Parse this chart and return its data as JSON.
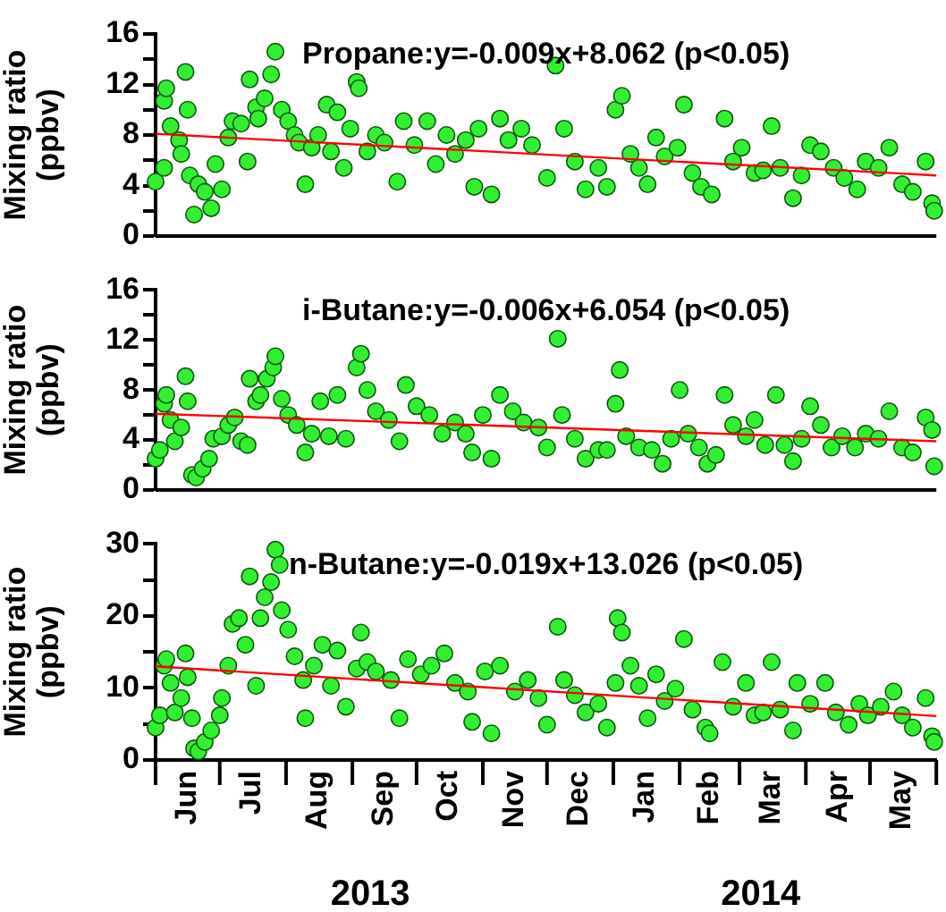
{
  "chart_data": [
    {
      "type": "scatter",
      "title": "Propane:y=-0.009x+8.062 (p<0.05)",
      "ylabel": "Mixing ratio\n(ppbv)",
      "xlim": [
        "2013-06-01",
        "2014-06-01"
      ],
      "ylim": [
        0,
        16
      ],
      "yticks": [
        0,
        {
          "value": 2,
          "label": null
        },
        4,
        {
          "value": 6,
          "label": null
        },
        8,
        {
          "value": 10,
          "label": null
        },
        12,
        {
          "value": 14,
          "label": null
        },
        16
      ],
      "tick_labels": "y",
      "marker": "circle",
      "series": [
        {
          "color": "#33ee33",
          "x": [
            "2013-06-01",
            "2013-06-05",
            "2013-06-05",
            "2013-06-06",
            "2013-06-08",
            "2013-06-12",
            "2013-06-13",
            "2013-06-15",
            "2013-06-16",
            "2013-06-17",
            "2013-06-19",
            "2013-06-21",
            "2013-06-24",
            "2013-06-27",
            "2013-06-29",
            "2013-07-02",
            "2013-07-05",
            "2013-07-07",
            "2013-07-11",
            "2013-07-14",
            "2013-07-15",
            "2013-07-18",
            "2013-07-19",
            "2013-07-22",
            "2013-07-25",
            "2013-07-27",
            "2013-07-30",
            "2013-08-02",
            "2013-08-05",
            "2013-08-07",
            "2013-08-10",
            "2013-08-13",
            "2013-08-16",
            "2013-08-20",
            "2013-08-22",
            "2013-08-25",
            "2013-08-28",
            "2013-08-31",
            "2013-09-03",
            "2013-09-04",
            "2013-09-08",
            "2013-09-12",
            "2013-09-16",
            "2013-09-22",
            "2013-09-25",
            "2013-09-30",
            "2013-10-06",
            "2013-10-10",
            "2013-10-15",
            "2013-10-19",
            "2013-10-24",
            "2013-10-28",
            "2013-10-30",
            "2013-11-05",
            "2013-11-09",
            "2013-11-13",
            "2013-11-19",
            "2013-11-24",
            "2013-12-01",
            "2013-12-05",
            "2013-12-09",
            "2013-12-14",
            "2013-12-19",
            "2013-12-25",
            "2013-12-29",
            "2014-01-02",
            "2014-01-05",
            "2014-01-09",
            "2014-01-13",
            "2014-01-17",
            "2014-01-21",
            "2014-01-25",
            "2014-01-31",
            "2014-02-03",
            "2014-02-07",
            "2014-02-11",
            "2014-02-16",
            "2014-02-22",
            "2014-02-26",
            "2014-03-02",
            "2014-03-08",
            "2014-03-12",
            "2014-03-16",
            "2014-03-20",
            "2014-03-26",
            "2014-03-30",
            "2014-04-03",
            "2014-04-08",
            "2014-04-14",
            "2014-04-19",
            "2014-04-25",
            "2014-04-29",
            "2014-05-05",
            "2014-05-10",
            "2014-05-16",
            "2014-05-21",
            "2014-05-27",
            "2014-05-30",
            "2014-05-31"
          ],
          "values": [
            4.3,
            5.4,
            10.7,
            11.7,
            8.7,
            7.6,
            6.5,
            13.0,
            10.0,
            4.8,
            1.7,
            4.1,
            3.5,
            2.2,
            5.7,
            3.7,
            7.8,
            9.1,
            8.9,
            5.9,
            12.4,
            10.2,
            9.3,
            10.9,
            12.8,
            14.6,
            10.0,
            9.1,
            8.0,
            7.4,
            4.1,
            7.0,
            8.0,
            10.4,
            6.7,
            9.8,
            5.4,
            8.5,
            12.2,
            11.7,
            6.7,
            8.0,
            7.4,
            4.3,
            9.1,
            7.2,
            9.1,
            5.7,
            8.0,
            6.5,
            7.6,
            3.9,
            8.5,
            3.3,
            9.3,
            7.6,
            8.5,
            7.2,
            4.6,
            13.5,
            8.5,
            5.9,
            3.7,
            5.4,
            3.9,
            10.0,
            11.1,
            6.5,
            5.4,
            4.1,
            7.8,
            6.3,
            7.0,
            10.4,
            5.0,
            3.9,
            3.3,
            9.3,
            5.9,
            7.0,
            5.0,
            5.2,
            8.7,
            5.4,
            3.0,
            4.8,
            7.2,
            6.7,
            5.4,
            4.6,
            3.7,
            5.9,
            5.4,
            7.0,
            4.1,
            3.5,
            5.9,
            2.6,
            2.0
          ]
        },
        {
          "type": "line",
          "marker": "none",
          "color": "#ff0000",
          "x": [
            "2013-06-01",
            "2014-06-01"
          ],
          "values": [
            8.1,
            4.8
          ]
        }
      ]
    },
    {
      "type": "scatter",
      "title": "i-Butane:y=-0.006x+6.054 (p<0.05)",
      "ylabel": "Mixing ratio\n(ppbv)",
      "xlim": [
        "2013-06-01",
        "2014-06-01"
      ],
      "ylim": [
        0,
        16
      ],
      "yticks": [
        0,
        {
          "value": 2,
          "label": null
        },
        4,
        {
          "value": 6,
          "label": null
        },
        8,
        {
          "value": 10,
          "label": null
        },
        12,
        {
          "value": 14,
          "label": null
        },
        16
      ],
      "tick_labels": "y",
      "marker": "circle",
      "series": [
        {
          "color": "#33ee33",
          "x": [
            "2013-06-01",
            "2013-06-03",
            "2013-06-05",
            "2013-06-06",
            "2013-06-08",
            "2013-06-10",
            "2013-06-13",
            "2013-06-15",
            "2013-06-16",
            "2013-06-18",
            "2013-06-20",
            "2013-06-23",
            "2013-06-26",
            "2013-06-28",
            "2013-07-02",
            "2013-07-05",
            "2013-07-08",
            "2013-07-11",
            "2013-07-14",
            "2013-07-15",
            "2013-07-18",
            "2013-07-20",
            "2013-07-23",
            "2013-07-26",
            "2013-07-27",
            "2013-07-30",
            "2013-08-02",
            "2013-08-06",
            "2013-08-10",
            "2013-08-13",
            "2013-08-17",
            "2013-08-21",
            "2013-08-25",
            "2013-08-29",
            "2013-09-03",
            "2013-09-05",
            "2013-09-08",
            "2013-09-12",
            "2013-09-18",
            "2013-09-23",
            "2013-09-26",
            "2013-10-01",
            "2013-10-07",
            "2013-10-13",
            "2013-10-19",
            "2013-10-24",
            "2013-10-27",
            "2013-11-01",
            "2013-11-05",
            "2013-11-09",
            "2013-11-15",
            "2013-11-20",
            "2013-11-27",
            "2013-12-01",
            "2013-12-06",
            "2013-12-08",
            "2013-12-14",
            "2013-12-19",
            "2013-12-25",
            "2013-12-29",
            "2014-01-02",
            "2014-01-04",
            "2014-01-07",
            "2014-01-13",
            "2014-01-19",
            "2014-01-24",
            "2014-01-28",
            "2014-02-01",
            "2014-02-05",
            "2014-02-10",
            "2014-02-14",
            "2014-02-18",
            "2014-02-22",
            "2014-02-26",
            "2014-03-04",
            "2014-03-08",
            "2014-03-13",
            "2014-03-18",
            "2014-03-22",
            "2014-03-26",
            "2014-03-30",
            "2014-04-03",
            "2014-04-08",
            "2014-04-13",
            "2014-04-18",
            "2014-04-24",
            "2014-04-29",
            "2014-05-05",
            "2014-05-10",
            "2014-05-16",
            "2014-05-21",
            "2014-05-27",
            "2014-05-30",
            "2014-05-31"
          ],
          "values": [
            2.5,
            3.2,
            6.9,
            7.6,
            5.6,
            3.9,
            5.0,
            9.1,
            7.1,
            1.2,
            1.0,
            1.7,
            2.5,
            4.1,
            4.3,
            5.2,
            5.8,
            3.9,
            3.6,
            8.9,
            7.1,
            7.6,
            8.9,
            9.8,
            10.7,
            7.3,
            6.0,
            5.2,
            3.0,
            4.5,
            7.1,
            4.3,
            7.6,
            4.1,
            9.8,
            10.9,
            8.0,
            6.3,
            5.6,
            3.9,
            8.4,
            6.7,
            6.0,
            4.5,
            5.4,
            4.5,
            3.0,
            6.0,
            2.5,
            7.6,
            6.3,
            5.4,
            5.0,
            3.4,
            12.1,
            6.0,
            4.1,
            2.5,
            3.2,
            3.2,
            6.9,
            9.6,
            4.3,
            3.4,
            3.2,
            2.1,
            4.1,
            8.0,
            4.5,
            3.4,
            2.1,
            2.8,
            7.6,
            5.2,
            4.3,
            5.6,
            3.6,
            7.6,
            3.6,
            2.3,
            4.1,
            6.7,
            5.2,
            3.4,
            4.3,
            3.4,
            4.5,
            4.1,
            6.3,
            3.4,
            3.0,
            5.8,
            4.8,
            1.9
          ]
        },
        {
          "type": "line",
          "marker": "none",
          "color": "#ff0000",
          "x": [
            "2013-06-01",
            "2014-06-01"
          ],
          "values": [
            6.1,
            3.9
          ]
        }
      ]
    },
    {
      "type": "scatter",
      "title": "n-Butane:y=-0.019x+13.026 (p<0.05)",
      "ylabel": "Mixing ratio\n(ppbv)",
      "annotations": [
        "2013",
        "2014"
      ],
      "xlim": [
        "2013-06-01",
        "2014-06-01"
      ],
      "xticks": [
        {
          "value": "2013-06-01",
          "label": null
        },
        {
          "value": "2013-06-16",
          "label": "Jun"
        },
        {
          "value": "2013-07-01",
          "label": null
        },
        {
          "value": "2013-07-16",
          "label": "Jul"
        },
        {
          "value": "2013-08-01",
          "label": null
        },
        {
          "value": "2013-08-16",
          "label": "Aug"
        },
        {
          "value": "2013-09-01",
          "label": null
        },
        {
          "value": "2013-09-16",
          "label": "Sep"
        },
        {
          "value": "2013-10-01",
          "label": null
        },
        {
          "value": "2013-10-16",
          "label": "Oct"
        },
        {
          "value": "2013-11-01",
          "label": null
        },
        {
          "value": "2013-11-16",
          "label": "Nov"
        },
        {
          "value": "2013-12-01",
          "label": null
        },
        {
          "value": "2013-12-16",
          "label": "Dec"
        },
        {
          "value": "2014-01-01",
          "label": null
        },
        {
          "value": "2014-01-16",
          "label": "Jan"
        },
        {
          "value": "2014-02-01",
          "label": null
        },
        {
          "value": "2014-02-15",
          "label": "Feb"
        },
        {
          "value": "2014-03-01",
          "label": null
        },
        {
          "value": "2014-03-16",
          "label": "Mar"
        },
        {
          "value": "2014-04-01",
          "label": null
        },
        {
          "value": "2014-04-16",
          "label": "Apr"
        },
        {
          "value": "2014-05-01",
          "label": null
        },
        {
          "value": "2014-05-16",
          "label": "May"
        },
        {
          "value": "2014-06-01",
          "label": null
        }
      ],
      "ylim": [
        0,
        30
      ],
      "yticks": [
        0,
        {
          "value": 5,
          "label": null
        },
        10,
        {
          "value": 15,
          "label": null
        },
        20,
        {
          "value": 25,
          "label": null
        },
        30
      ],
      "marker": "circle",
      "series": [
        {
          "color": "#33ee33",
          "x": [
            "2013-06-01",
            "2013-06-03",
            "2013-06-05",
            "2013-06-06",
            "2013-06-08",
            "2013-06-10",
            "2013-06-13",
            "2013-06-15",
            "2013-06-16",
            "2013-06-18",
            "2013-06-19",
            "2013-06-21",
            "2013-06-24",
            "2013-06-27",
            "2013-07-01",
            "2013-07-02",
            "2013-07-05",
            "2013-07-07",
            "2013-07-10",
            "2013-07-13",
            "2013-07-15",
            "2013-07-18",
            "2013-07-20",
            "2013-07-22",
            "2013-07-25",
            "2013-07-27",
            "2013-07-29",
            "2013-07-30",
            "2013-08-02",
            "2013-08-05",
            "2013-08-09",
            "2013-08-10",
            "2013-08-14",
            "2013-08-18",
            "2013-08-22",
            "2013-08-25",
            "2013-08-29",
            "2013-09-03",
            "2013-09-05",
            "2013-09-08",
            "2013-09-12",
            "2013-09-19",
            "2013-09-23",
            "2013-09-27",
            "2013-10-03",
            "2013-10-08",
            "2013-10-14",
            "2013-10-19",
            "2013-10-25",
            "2013-10-27",
            "2013-11-02",
            "2013-11-05",
            "2013-11-09",
            "2013-11-16",
            "2013-11-22",
            "2013-11-27",
            "2013-12-01",
            "2013-12-06",
            "2013-12-09",
            "2013-12-14",
            "2013-12-19",
            "2013-12-25",
            "2013-12-29",
            "2014-01-02",
            "2014-01-03",
            "2014-01-05",
            "2014-01-09",
            "2014-01-13",
            "2014-01-17",
            "2014-01-21",
            "2014-01-25",
            "2014-01-30",
            "2014-02-03",
            "2014-02-07",
            "2014-02-13",
            "2014-02-15",
            "2014-02-21",
            "2014-02-26",
            "2014-03-04",
            "2014-03-08",
            "2014-03-12",
            "2014-03-16",
            "2014-03-20",
            "2014-03-26",
            "2014-03-28",
            "2014-04-03",
            "2014-04-10",
            "2014-04-15",
            "2014-04-21",
            "2014-04-26",
            "2014-04-30",
            "2014-05-06",
            "2014-05-12",
            "2014-05-16",
            "2014-05-21",
            "2014-05-27",
            "2014-05-30",
            "2014-05-31"
          ],
          "values": [
            4.5,
            6.2,
            13.1,
            14.0,
            10.7,
            6.6,
            8.6,
            14.8,
            11.5,
            5.8,
            1.6,
            1.2,
            2.5,
            4.1,
            6.2,
            8.6,
            13.1,
            18.9,
            19.7,
            16.0,
            25.5,
            10.3,
            19.7,
            22.6,
            24.7,
            29.2,
            27.1,
            20.8,
            18.1,
            14.4,
            11.1,
            5.8,
            13.1,
            16.0,
            10.3,
            15.2,
            7.4,
            12.7,
            17.7,
            13.6,
            12.3,
            11.1,
            5.8,
            14.0,
            11.9,
            13.1,
            14.8,
            10.7,
            9.5,
            5.3,
            12.3,
            3.7,
            13.1,
            9.5,
            11.1,
            8.6,
            4.9,
            18.5,
            11.1,
            9.0,
            6.6,
            7.8,
            4.5,
            10.7,
            19.7,
            17.7,
            13.1,
            10.3,
            5.8,
            11.9,
            8.2,
            9.9,
            16.8,
            7.0,
            4.5,
            3.7,
            13.6,
            7.4,
            10.7,
            6.2,
            6.6,
            13.6,
            7.0,
            4.1,
            10.7,
            7.8,
            10.7,
            6.6,
            4.9,
            7.8,
            6.2,
            7.4,
            9.5,
            6.2,
            4.5,
            8.6,
            3.3,
            2.5
          ]
        },
        {
          "type": "line",
          "marker": "none",
          "color": "#ff0000",
          "x": [
            "2013-06-01",
            "2014-06-01"
          ],
          "values": [
            13.0,
            6.1
          ]
        }
      ]
    }
  ]
}
